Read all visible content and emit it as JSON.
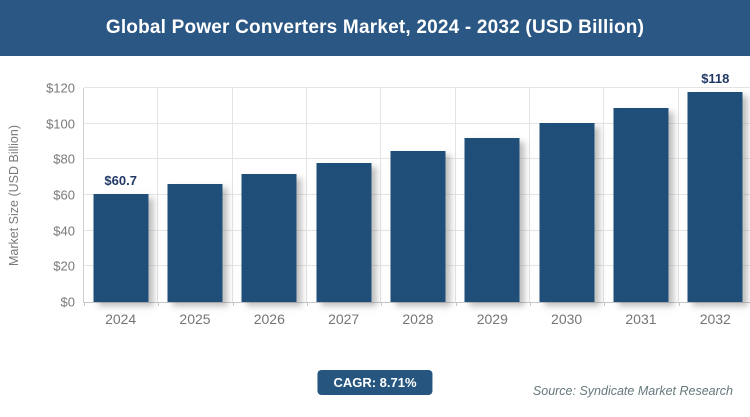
{
  "title": "Global Power Converters Market, 2024 - 2032 (USD Billion)",
  "cagr_label": "CAGR: 8.71%",
  "source": "Source: Syndicate Market Research",
  "colors": {
    "banner": "#2A5783",
    "bar": "#1F4E79",
    "badge": "#26567F",
    "data_label": "#1F3864",
    "axis_text": "#7A7A7A",
    "grid": "#E4E4E4",
    "source_text": "#64787A"
  },
  "chart_data": {
    "type": "bar",
    "title": "Global Power Converters Market, 2024 - 2032 (USD Billion)",
    "categories": [
      "2024",
      "2025",
      "2026",
      "2027",
      "2028",
      "2029",
      "2030",
      "2031",
      "2032"
    ],
    "values": [
      60.7,
      66,
      71.7,
      78,
      84.8,
      92.2,
      100.2,
      108.9,
      118
    ],
    "point_labels": [
      "$60.7",
      "",
      "",
      "",
      "",
      "",
      "",
      "",
      "$118"
    ],
    "xlabel": "",
    "ylabel": "Market Size (USD Billion)",
    "ylim": [
      0,
      120
    ],
    "y_ticks": [
      {
        "label": "$0",
        "value": 0
      },
      {
        "label": "$20",
        "value": 20
      },
      {
        "label": "$40",
        "value": 40
      },
      {
        "label": "$60",
        "value": 60
      },
      {
        "label": "$80",
        "value": 80
      },
      {
        "label": "$100",
        "value": 100
      },
      {
        "label": "$120",
        "value": 120
      }
    ],
    "grid": true,
    "legend": false,
    "cagr": "8.71%"
  }
}
